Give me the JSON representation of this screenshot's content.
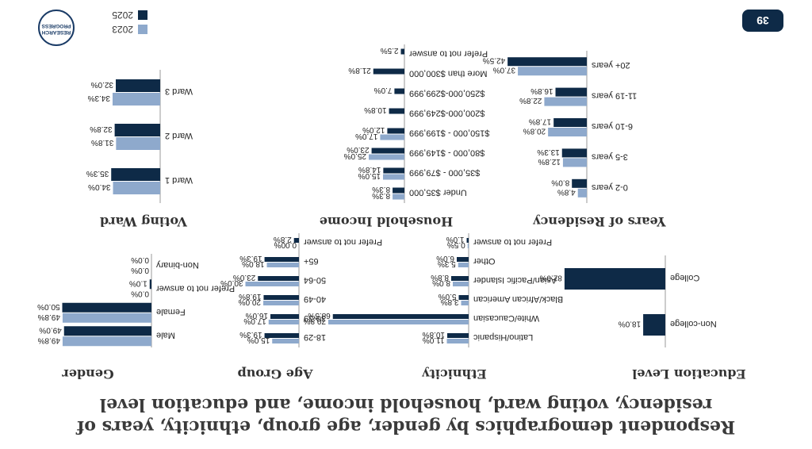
{
  "header": {
    "title": "Respondent demographics by gender, age group, ethnicity, years of residency, voting ward, household income, and education level",
    "page_number": "39",
    "logo_line1": "RESEARCH",
    "logo_line2": "PROGRESS"
  },
  "legend": [
    {
      "name": "2023",
      "color": "#8ea9cc"
    },
    {
      "name": "2025",
      "color": "#0e2a47"
    }
  ],
  "chart_data": [
    {
      "type": "bar",
      "title": "Gender",
      "categories": [
        "Male",
        "Female",
        "Prefer not to answer",
        "Non-binary"
      ],
      "series": [
        {
          "name": "2023",
          "values": [
            49.8,
            49.8,
            0.0,
            0.0
          ]
        },
        {
          "name": "2025",
          "values": [
            49.0,
            50.0,
            1.0,
            0.0
          ]
        }
      ],
      "value_labels": [
        [
          "49.8%",
          "49.8%",
          "0.0%",
          "0.0%"
        ],
        [
          "49.0%",
          "50.0%",
          "1.0%",
          "0.0%"
        ]
      ]
    },
    {
      "type": "bar",
      "title": "Age Group",
      "categories": [
        "18-29",
        "30-39",
        "40-49",
        "50-64",
        "65+",
        "Prefer not to answer"
      ],
      "series": [
        {
          "name": "2023",
          "values": [
            15.0,
            17.0,
            20.0,
            30.0,
            18.0,
            0.0
          ]
        },
        {
          "name": "2025",
          "values": [
            19.3,
            16.0,
            19.8,
            23.0,
            19.3,
            2.8
          ]
        }
      ],
      "value_labels": [
        [
          "15.0%",
          "17.0%",
          "20.0%",
          "30.0%",
          "18.0%",
          "0.00%"
        ],
        [
          "19.3%",
          "16.0%",
          "19.8%",
          "23.0%",
          "19.3%",
          "2.8%"
        ]
      ]
    },
    {
      "type": "bar",
      "title": "Ethnicity",
      "categories": [
        "Latino/Hispanic",
        "White/Caucasian",
        "Black/African American",
        "Asian/Pacific Islander",
        "Other",
        "Prefer not to answer"
      ],
      "series": [
        {
          "name": "2023",
          "values": [
            11.0,
            70.8,
            3.8,
            8.0,
            5.3,
            0.5
          ]
        },
        {
          "name": "2025",
          "values": [
            10.8,
            68.5,
            5.0,
            8.8,
            6.0,
            1.0
          ]
        }
      ],
      "value_labels": [
        [
          "11.0%",
          "70.8%",
          "3.8%",
          "8.0%",
          "5.3%",
          "0.5%"
        ],
        [
          "10.8%",
          "68.5%",
          "5.0%",
          "8.8%",
          "6.0%",
          "1.0%"
        ]
      ]
    },
    {
      "type": "bar",
      "title": "Education Level",
      "categories": [
        "Non-college",
        "College"
      ],
      "series": [
        {
          "name": "2025",
          "values": [
            18.0,
            82.0
          ]
        }
      ],
      "value_labels": [
        [
          "18.0%",
          "82.0%"
        ]
      ]
    },
    {
      "type": "bar",
      "title": "Voting Ward",
      "categories": [
        "Ward 1",
        "Ward 2",
        "Ward 3"
      ],
      "series": [
        {
          "name": "2023",
          "values": [
            34.0,
            31.8,
            34.3
          ]
        },
        {
          "name": "2025",
          "values": [
            35.3,
            32.8,
            32.0
          ]
        }
      ],
      "value_labels": [
        [
          "34.0%",
          "31.8%",
          "34.3%"
        ],
        [
          "35.3%",
          "32.8%",
          "32.0%"
        ]
      ]
    },
    {
      "type": "bar",
      "title": "Household Income",
      "categories": [
        "Under $35,000",
        "$35,000 - $79,999",
        "$80,000 - $149,999",
        "$150,000 - $199,999",
        "$200,000-$249,999",
        "$250,000-$299,999",
        "More than $300,000",
        "Prefer not to answer"
      ],
      "series": [
        {
          "name": "2023",
          "values": [
            8.3,
            15.0,
            25.0,
            17.0,
            0.0,
            0.0,
            0.0,
            0.0
          ]
        },
        {
          "name": "2025",
          "values": [
            8.3,
            14.8,
            23.0,
            12.0,
            10.8,
            7.0,
            21.8,
            2.5
          ]
        }
      ],
      "value_labels": [
        [
          "8.3%",
          "15.0%",
          "25.0%",
          "17.0%",
          "",
          "",
          "",
          ""
        ],
        [
          "8.3%",
          "14.8%",
          "23.0%",
          "12.0%",
          "10.8%",
          "7.0%",
          "21.8%",
          "2.5%"
        ]
      ]
    },
    {
      "type": "bar",
      "title": "Years of Residency",
      "categories": [
        "0-2 years",
        "3-5 years",
        "6-10 years",
        "11-19 years",
        "20+ years"
      ],
      "series": [
        {
          "name": "2023",
          "values": [
            4.8,
            12.8,
            20.8,
            22.8,
            37.0
          ]
        },
        {
          "name": "2025",
          "values": [
            8.0,
            13.3,
            17.8,
            16.8,
            42.5
          ]
        }
      ],
      "value_labels": [
        [
          "4.8%",
          "12.8%",
          "20.8%",
          "22.8%",
          "37.0%"
        ],
        [
          "8.0%",
          "13.3%",
          "17.8%",
          "16.8%",
          "42.5%"
        ]
      ]
    }
  ]
}
